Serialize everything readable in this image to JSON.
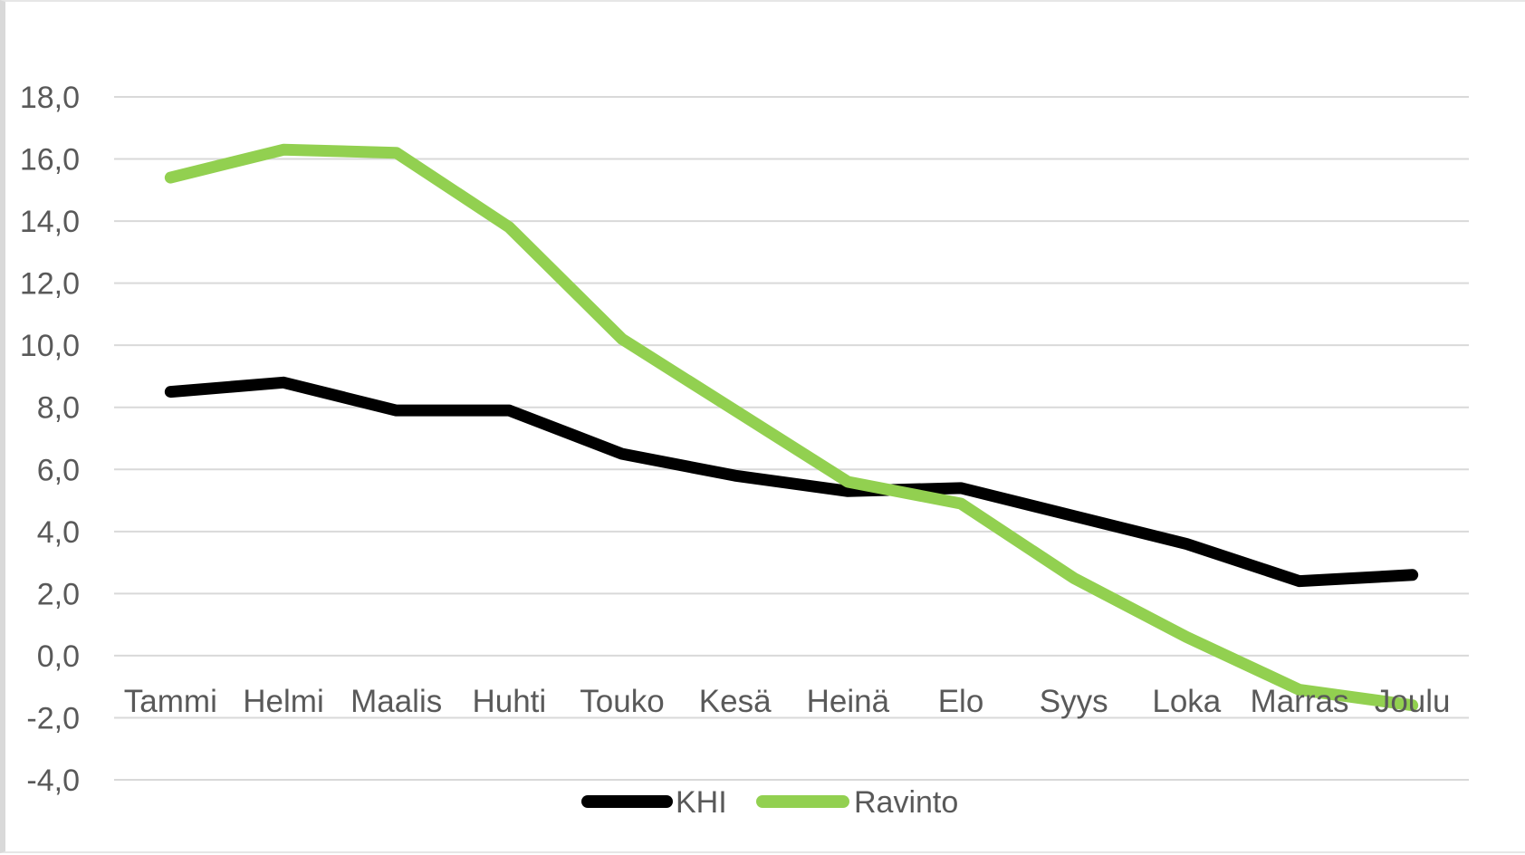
{
  "chart_data": {
    "type": "line",
    "categories": [
      "Tammi",
      "Helmi",
      "Maalis",
      "Huhti",
      "Touko",
      "Kesä",
      "Heinä",
      "Elo",
      "Syys",
      "Loka",
      "Marras",
      "Joulu"
    ],
    "series": [
      {
        "name": "KHI",
        "color": "#000000",
        "values": [
          8.5,
          8.8,
          7.9,
          7.9,
          6.5,
          5.8,
          5.3,
          5.4,
          4.5,
          3.6,
          2.4,
          2.6
        ]
      },
      {
        "name": "Ravinto",
        "color": "#92d050",
        "values": [
          15.4,
          16.3,
          16.2,
          13.8,
          10.2,
          7.9,
          5.6,
          4.9,
          2.5,
          0.6,
          -1.1,
          -1.6
        ]
      }
    ],
    "y_ticks": [
      "18,0",
      "16,0",
      "14,0",
      "12,0",
      "10,0",
      "8,0",
      "6,0",
      "4,0",
      "2,0",
      "0,0",
      "-2,0",
      "-4,0"
    ],
    "ylim": [
      -4,
      18
    ],
    "y_step": 2,
    "grid": true,
    "legend_position": "bottom",
    "title": "",
    "xlabel": "",
    "ylabel": ""
  }
}
